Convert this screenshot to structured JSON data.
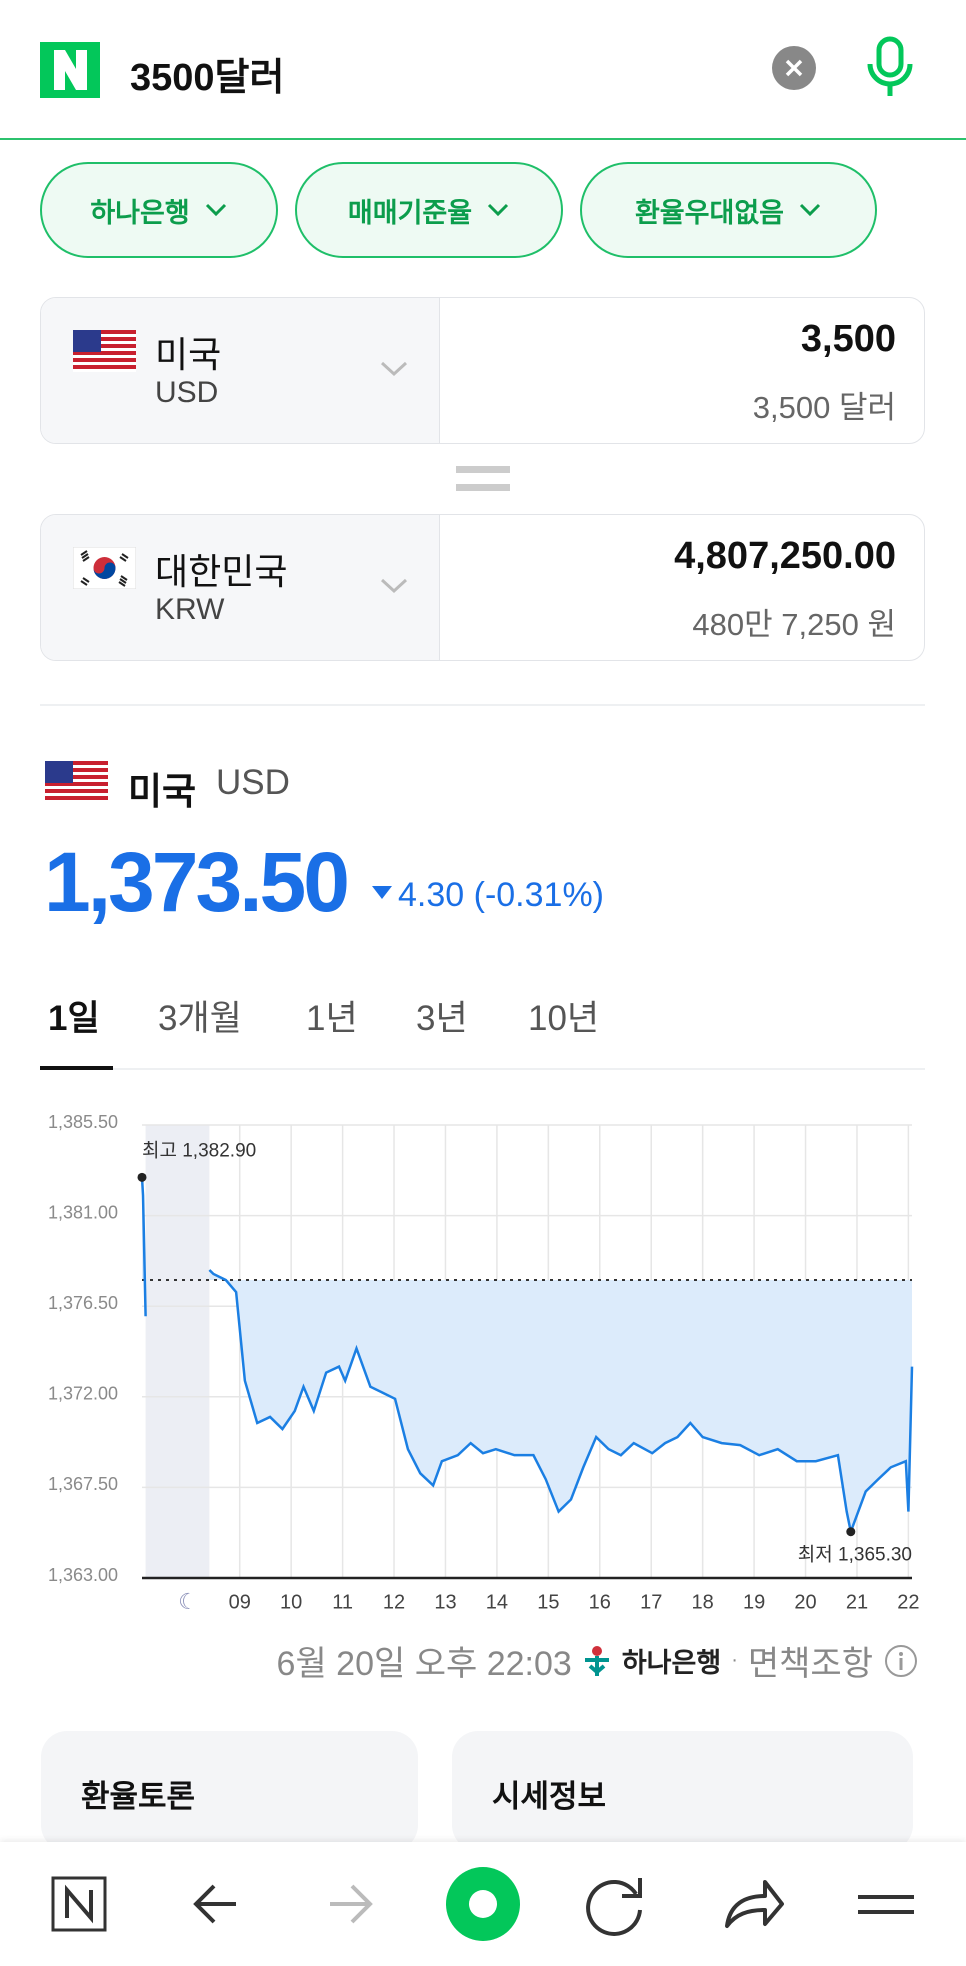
{
  "header": {
    "query": "3500달러"
  },
  "filters": [
    "하나은행",
    "매매기준율",
    "환율우대없음"
  ],
  "converter": {
    "from": {
      "country": "미국",
      "code": "USD",
      "amount": "3,500",
      "amount_words": "3,500 달러"
    },
    "to": {
      "country": "대한민국",
      "code": "KRW",
      "amount": "4,807,250.00",
      "amount_words": "480만 7,250 원"
    }
  },
  "quote": {
    "country": "미국",
    "code": "USD",
    "price": "1,373.50",
    "change": "4.30 (-0.31%)"
  },
  "tabs": [
    "1일",
    "3개월",
    "1년",
    "3년",
    "10년"
  ],
  "chart": {
    "type": "line",
    "x": [
      7.1,
      7.12,
      7.17,
      7.5,
      8.41,
      8.49,
      8.73,
      8.93,
      9.1,
      9.34,
      9.59,
      9.83,
      10.07,
      10.24,
      10.44,
      10.68,
      10.93,
      11.05,
      11.27,
      11.54,
      11.78,
      12.02,
      12.27,
      12.51,
      12.76,
      12.93,
      13.24,
      13.49,
      13.73,
      13.98,
      14.34,
      14.71,
      14.95,
      15.2,
      15.44,
      15.68,
      15.93,
      16.17,
      16.41,
      16.66,
      17.02,
      17.27,
      17.51,
      17.76,
      18.0,
      18.37,
      18.73,
      19.1,
      19.46,
      19.83,
      20.2,
      20.63,
      20.8,
      20.88,
      21.17,
      21.41,
      21.66,
      21.95,
      22.0,
      22.07
    ],
    "series": [
      {
        "color": "#1b7fe3",
        "values": [
          1382.9,
          1382.0,
          1376.0,
          null,
          1378.3,
          1378.1,
          1377.8,
          1377.2,
          1372.8,
          1370.7,
          1371.0,
          1370.4,
          1371.3,
          1372.5,
          1371.3,
          1373.2,
          1373.5,
          1372.8,
          1374.4,
          1372.5,
          1372.2,
          1371.9,
          1369.4,
          1368.2,
          1367.6,
          1368.8,
          1369.1,
          1369.7,
          1369.2,
          1369.4,
          1369.1,
          1369.1,
          1367.9,
          1366.3,
          1366.9,
          1368.5,
          1370.0,
          1369.4,
          1369.1,
          1369.7,
          1369.2,
          1369.7,
          1370.0,
          1370.7,
          1370.0,
          1369.7,
          1369.6,
          1369.1,
          1369.4,
          1368.8,
          1368.8,
          1369.1,
          1366.3,
          1365.3,
          1367.3,
          1367.9,
          1368.5,
          1368.8,
          1366.3,
          1373.5
        ]
      }
    ],
    "fill_color": "#dcebfb",
    "reference_line": 1377.8,
    "shaded_range": [
      7.17,
      8.41
    ],
    "xlim": [
      7.1,
      22.07
    ],
    "ylim": [
      1363,
      1385.5
    ],
    "xticks": [
      {
        "value": 9,
        "label": "09"
      },
      10,
      11,
      12,
      13,
      14,
      15,
      16,
      17,
      18,
      19,
      20,
      21,
      22
    ],
    "yticks": [
      {
        "value": 1363,
        "label": "1,363.00"
      },
      {
        "value": 1367.5,
        "label": "1,367.50"
      },
      {
        "value": 1372,
        "label": "1,372.00"
      },
      {
        "value": 1376.5,
        "label": "1,376.50"
      },
      {
        "value": 1381,
        "label": "1,381.00"
      },
      {
        "value": 1385.5,
        "label": "1,385.50"
      }
    ],
    "grid": true,
    "annotations": [
      {
        "label": "최고 1,382.90",
        "x": 7.1,
        "value": 1382.9
      },
      {
        "label": "최저 1,365.30",
        "x": 20.88,
        "value": 1365.3
      }
    ]
  },
  "footer": {
    "timestamp": "6월 20일 오후 22:03",
    "source": "하나은행",
    "disclaimer": "면책조항"
  },
  "cards": [
    "환율토론",
    "시세정보"
  ]
}
